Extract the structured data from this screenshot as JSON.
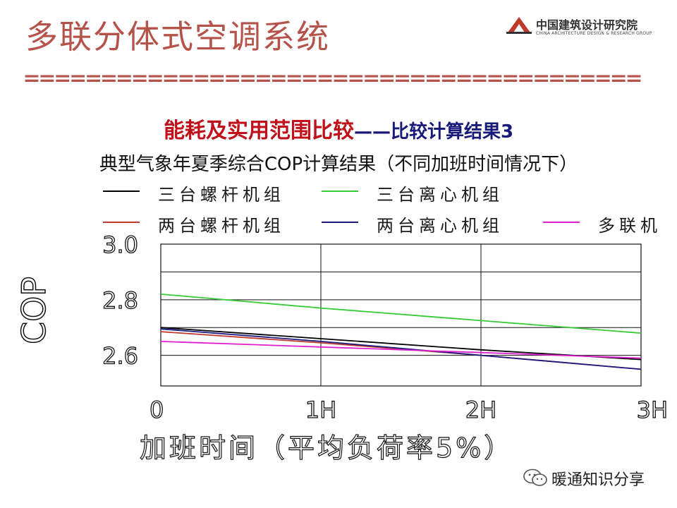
{
  "slide": {
    "title": "多联分体式空调系统",
    "divider": "========================================",
    "headline_part1": "能耗及实用范围比较",
    "headline_part2": "——比较计算结果3",
    "subtitle": "典型气象年夏季综合COP计算结果（不同加班时间情况下）"
  },
  "logo": {
    "name": "中国建筑设计研究院",
    "subtitle": "CHINA ARCHITECTURE DESIGN & RESEARCH GROUP"
  },
  "watermark": {
    "text": "暖通知识分享",
    "icon": "wechat-icon"
  },
  "colors": {
    "title": "#b5534a",
    "headline": "#c0101a",
    "headline_accent": "#1a1a7a"
  },
  "chart_data": {
    "type": "line",
    "title": "典型气象年夏季综合COP计算结果（不同加班时间情况下）",
    "xlabel": "加班时间（平均负荷率5%）",
    "ylabel": "COP",
    "x": [
      0,
      1,
      2,
      3
    ],
    "x_tick_labels": [
      "0",
      "1H",
      "2H",
      "3H"
    ],
    "y_ticks": [
      2.6,
      2.8,
      3.0
    ],
    "y_tick_labels": [
      "2.6",
      "2.8",
      "3.0"
    ],
    "xlim": [
      0,
      3
    ],
    "ylim": [
      2.49,
      3.0
    ],
    "grid": true,
    "legend_position": "top",
    "series": [
      {
        "name": "三台螺杆机组",
        "color": "#000000",
        "values": [
          2.7,
          2.66,
          2.62,
          2.585
        ]
      },
      {
        "name": "三台离心机组",
        "color": "#33cc33",
        "values": [
          2.82,
          2.77,
          2.725,
          2.68
        ]
      },
      {
        "name": "两台螺杆机组",
        "color": "#c0392b",
        "values": [
          2.685,
          2.645,
          2.6,
          2.55
        ]
      },
      {
        "name": "两台离心机组",
        "color": "#1a1a80",
        "values": [
          2.695,
          2.65,
          2.6,
          2.55
        ]
      },
      {
        "name": "多联机",
        "color": "#e020d0",
        "values": [
          2.65,
          2.63,
          2.61,
          2.59
        ]
      }
    ]
  }
}
